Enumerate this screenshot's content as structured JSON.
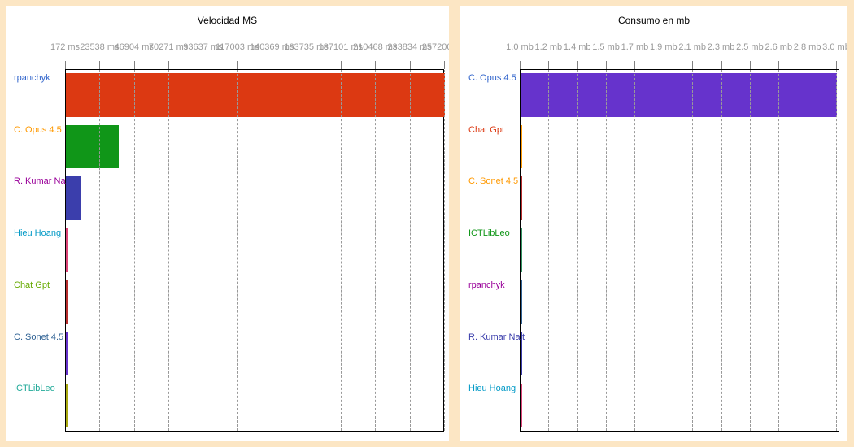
{
  "page": {
    "background_color": "#FCE6C4",
    "panel_color": "#FFFFFF",
    "tick_label_color": "#999999",
    "grid_color": "#999999",
    "axis_border_color": "#000000"
  },
  "chart_data": [
    {
      "type": "bar",
      "orientation": "horizontal",
      "title": "Velocidad MS",
      "xlabel": "",
      "ylabel": "",
      "unit": "ms",
      "xlim": [
        172,
        257200
      ],
      "grid": true,
      "x_tick_labels": [
        "172 ms",
        "23538 ms",
        "46904 ms",
        "70271 ms",
        "93637 ms",
        "117003 ms",
        "140369 ms",
        "163735 ms",
        "187101 ms",
        "210468 ms",
        "233834 ms",
        "257200 ms"
      ],
      "x_tick_values": [
        172,
        23538,
        46904,
        70271,
        93637,
        117003,
        140369,
        163735,
        187101,
        210468,
        233834,
        257200
      ],
      "categories": [
        "rpanchyk",
        "C. Opus 4.5",
        "R. Kumar Nait",
        "Hieu Hoang",
        "Chat Gpt",
        "C. Sonet 4.5",
        "ICTLibLeo"
      ],
      "values": [
        257200,
        36100,
        10100,
        1900,
        1750,
        1000,
        172
      ],
      "bar_colors": [
        "#DC3912",
        "#109618",
        "#3B3EAC",
        "#DD4477",
        "#B82E2E",
        "#6633CC",
        "#AAAA11"
      ],
      "category_label_colors": [
        "#3366CC",
        "#FF9900",
        "#990099",
        "#0099C6",
        "#66AA00",
        "#316395",
        "#22AA99"
      ]
    },
    {
      "type": "bar",
      "orientation": "horizontal",
      "title": "Consumo en mb",
      "xlabel": "",
      "ylabel": "",
      "unit": "mb",
      "xlim": [
        1.0,
        3.0
      ],
      "grid": true,
      "x_tick_labels": [
        "1.0 mb",
        "1.2 mb",
        "1.4 mb",
        "1.5 mb",
        "1.7 mb",
        "1.9 mb",
        "2.1 mb",
        "2.3 mb",
        "2.5 mb",
        "2.6 mb",
        "2.8 mb",
        "3.0 mb"
      ],
      "x_tick_values": [
        1.0,
        1.18,
        1.36,
        1.55,
        1.73,
        1.91,
        2.09,
        2.27,
        2.45,
        2.64,
        2.82,
        3.0
      ],
      "categories": [
        "C. Opus 4.5",
        "Chat Gpt",
        "C. Sonet 4.5",
        "ICTLibLeo",
        "rpanchyk",
        "R. Kumar Nait",
        "Hieu Hoang"
      ],
      "values": [
        3.0,
        1.012,
        1.01,
        1.009,
        1.008,
        1.006,
        1.004
      ],
      "bar_colors": [
        "#6633CC",
        "#FF9900",
        "#B82E2E",
        "#329262",
        "#316395",
        "#3B3EAC",
        "#DD4477"
      ],
      "category_label_colors": [
        "#3366CC",
        "#DC3912",
        "#FF9900",
        "#109618",
        "#990099",
        "#3B3EAC",
        "#0099C6"
      ]
    }
  ]
}
